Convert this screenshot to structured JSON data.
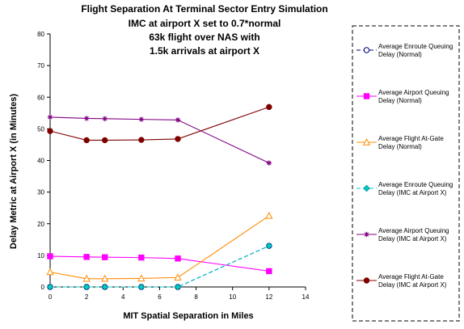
{
  "chart_data": {
    "type": "line",
    "title_lines": [
      "Flight Separation At Terminal Sector Entry Simulation",
      "IMC at airport X set to 0.7*normal",
      "63k flight over NAS with",
      "1.5k arrivals at airport X"
    ],
    "xlabel": "MIT Spatial Separation in Miles",
    "ylabel": "Delay Metric at Airport X (in Minutes)",
    "xlim": [
      0,
      14
    ],
    "ylim": [
      0,
      80
    ],
    "xticks": [
      0,
      2,
      4,
      6,
      8,
      10,
      12,
      14
    ],
    "yticks": [
      0,
      10,
      20,
      30,
      40,
      50,
      60,
      70,
      80
    ],
    "grid": false,
    "legend_position": "right",
    "x": [
      0,
      2,
      3,
      5,
      7,
      12
    ],
    "series": [
      {
        "name": "Average Enroute Queuing Delay (Normal)",
        "color": "#000080",
        "marker": "circle-open",
        "dashed": true,
        "values": [
          0,
          0,
          0,
          0,
          0,
          13
        ]
      },
      {
        "name": "Average Airport Queuing Delay (Normal)",
        "color": "#FF00FF",
        "marker": "square",
        "dashed": false,
        "values": [
          9.7,
          9.5,
          9.4,
          9.3,
          9.0,
          5.0
        ]
      },
      {
        "name": "Average Flight At-Gate Delay (Normal)",
        "color": "#FF8C00",
        "marker": "triangle-open",
        "dashed": false,
        "values": [
          4.7,
          2.6,
          2.6,
          2.7,
          3.0,
          22.5
        ]
      },
      {
        "name": "Average Enroute Queuing Delay (IMC at Airport X)",
        "color": "#00CCCC",
        "marker": "diamond",
        "dashed": true,
        "values": [
          0,
          0,
          0,
          0,
          0,
          13
        ]
      },
      {
        "name": "Average Airport Queuing Delay (IMC at Airport X)",
        "color": "#800080",
        "marker": "asterisk",
        "dashed": false,
        "values": [
          53.7,
          53.3,
          53.2,
          53.0,
          52.8,
          39.2
        ]
      },
      {
        "name": "Average Flight At-Gate Delay (IMC at Airport X)",
        "color": "#800000",
        "marker": "circle",
        "dashed": false,
        "values": [
          49.3,
          46.4,
          46.4,
          46.5,
          46.8,
          56.9
        ]
      }
    ]
  }
}
